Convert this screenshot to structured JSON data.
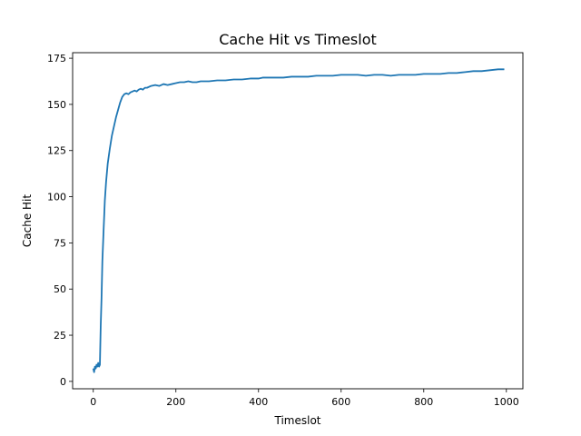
{
  "chart_data": {
    "type": "line",
    "title": "Cache Hit vs Timeslot",
    "xlabel": "Timeslot",
    "ylabel": "Cache Hit",
    "xlim": [
      -50,
      1040
    ],
    "ylim": [
      -4,
      178
    ],
    "xticks": [
      0,
      200,
      400,
      600,
      800,
      1000
    ],
    "yticks": [
      0,
      25,
      50,
      75,
      100,
      125,
      150,
      175
    ],
    "grid": false,
    "legend": "none",
    "series": [
      {
        "color": "#1f77b4",
        "x": [
          0,
          2,
          4,
          6,
          8,
          10,
          12,
          14,
          16,
          18,
          20,
          22,
          25,
          28,
          31,
          35,
          40,
          45,
          50,
          55,
          60,
          65,
          70,
          75,
          80,
          85,
          90,
          95,
          100,
          105,
          110,
          115,
          120,
          125,
          130,
          140,
          150,
          160,
          170,
          180,
          190,
          200,
          210,
          220,
          230,
          240,
          250,
          260,
          280,
          300,
          320,
          340,
          360,
          380,
          400,
          410,
          420,
          440,
          460,
          480,
          500,
          520,
          540,
          560,
          580,
          600,
          620,
          640,
          660,
          680,
          700,
          720,
          740,
          760,
          780,
          800,
          820,
          840,
          860,
          880,
          900,
          920,
          940,
          960,
          980,
          995
        ],
        "y": [
          7,
          5,
          8,
          7,
          9,
          8,
          10,
          8,
          9,
          30,
          45,
          65,
          82,
          98,
          108,
          118,
          126,
          133,
          138,
          143,
          147,
          151,
          154,
          155.5,
          156,
          155.5,
          156.5,
          157,
          157.5,
          157,
          158,
          158.5,
          158,
          159,
          159,
          160,
          160.5,
          160,
          161,
          160.5,
          161,
          161.5,
          162,
          162,
          162.5,
          162,
          162,
          162.5,
          162.5,
          163,
          163,
          163.5,
          163.5,
          164,
          164,
          164.5,
          164.5,
          164.5,
          164.5,
          165,
          165,
          165,
          165.5,
          165.5,
          165.5,
          166,
          166,
          166,
          165.5,
          166,
          166,
          165.5,
          166,
          166,
          166,
          166.5,
          166.5,
          166.5,
          167,
          167,
          167.5,
          168,
          168,
          168.5,
          169,
          169
        ]
      }
    ]
  }
}
